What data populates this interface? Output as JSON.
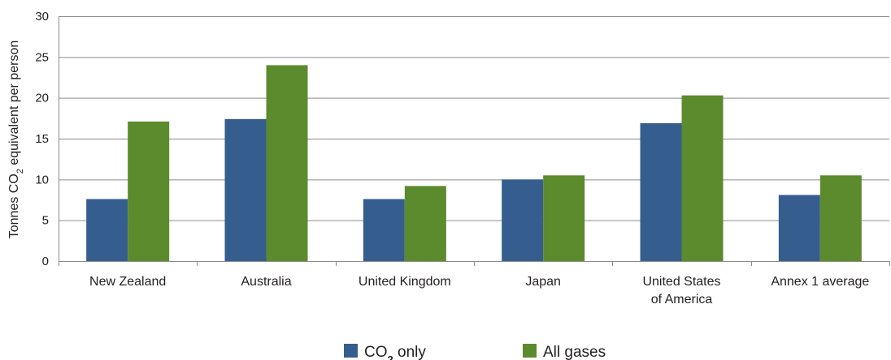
{
  "chart_data": {
    "type": "bar",
    "title": "",
    "xlabel": "",
    "ylabel": {
      "pre": "Tonnes CO",
      "sub": "2",
      "post": " equivalent per person"
    },
    "ylim": [
      0,
      30
    ],
    "yticks": [
      0,
      5,
      10,
      15,
      20,
      25,
      30
    ],
    "grid": true,
    "legend_position": "bottom-center",
    "categories": [
      [
        "New Zealand"
      ],
      [
        "Australia"
      ],
      [
        "United Kingdom"
      ],
      [
        "Japan"
      ],
      [
        "United States",
        "of America"
      ],
      [
        "Annex 1 average"
      ]
    ],
    "series": [
      {
        "name": "CO₂ only",
        "legend": {
          "pre": "CO",
          "sub": "2",
          "post": " only"
        },
        "color": "#355e8f",
        "values": [
          7.6,
          17.4,
          7.6,
          10.0,
          16.9,
          8.1
        ]
      },
      {
        "name": "All gases",
        "legend": {
          "pre": "All gases",
          "sub": "",
          "post": ""
        },
        "color": "#5b8b2c",
        "values": [
          17.1,
          24.0,
          9.2,
          10.5,
          20.3,
          10.5
        ]
      }
    ],
    "colors": {
      "grid": "#8c8c8c",
      "axis": "#8c8c8c"
    }
  }
}
